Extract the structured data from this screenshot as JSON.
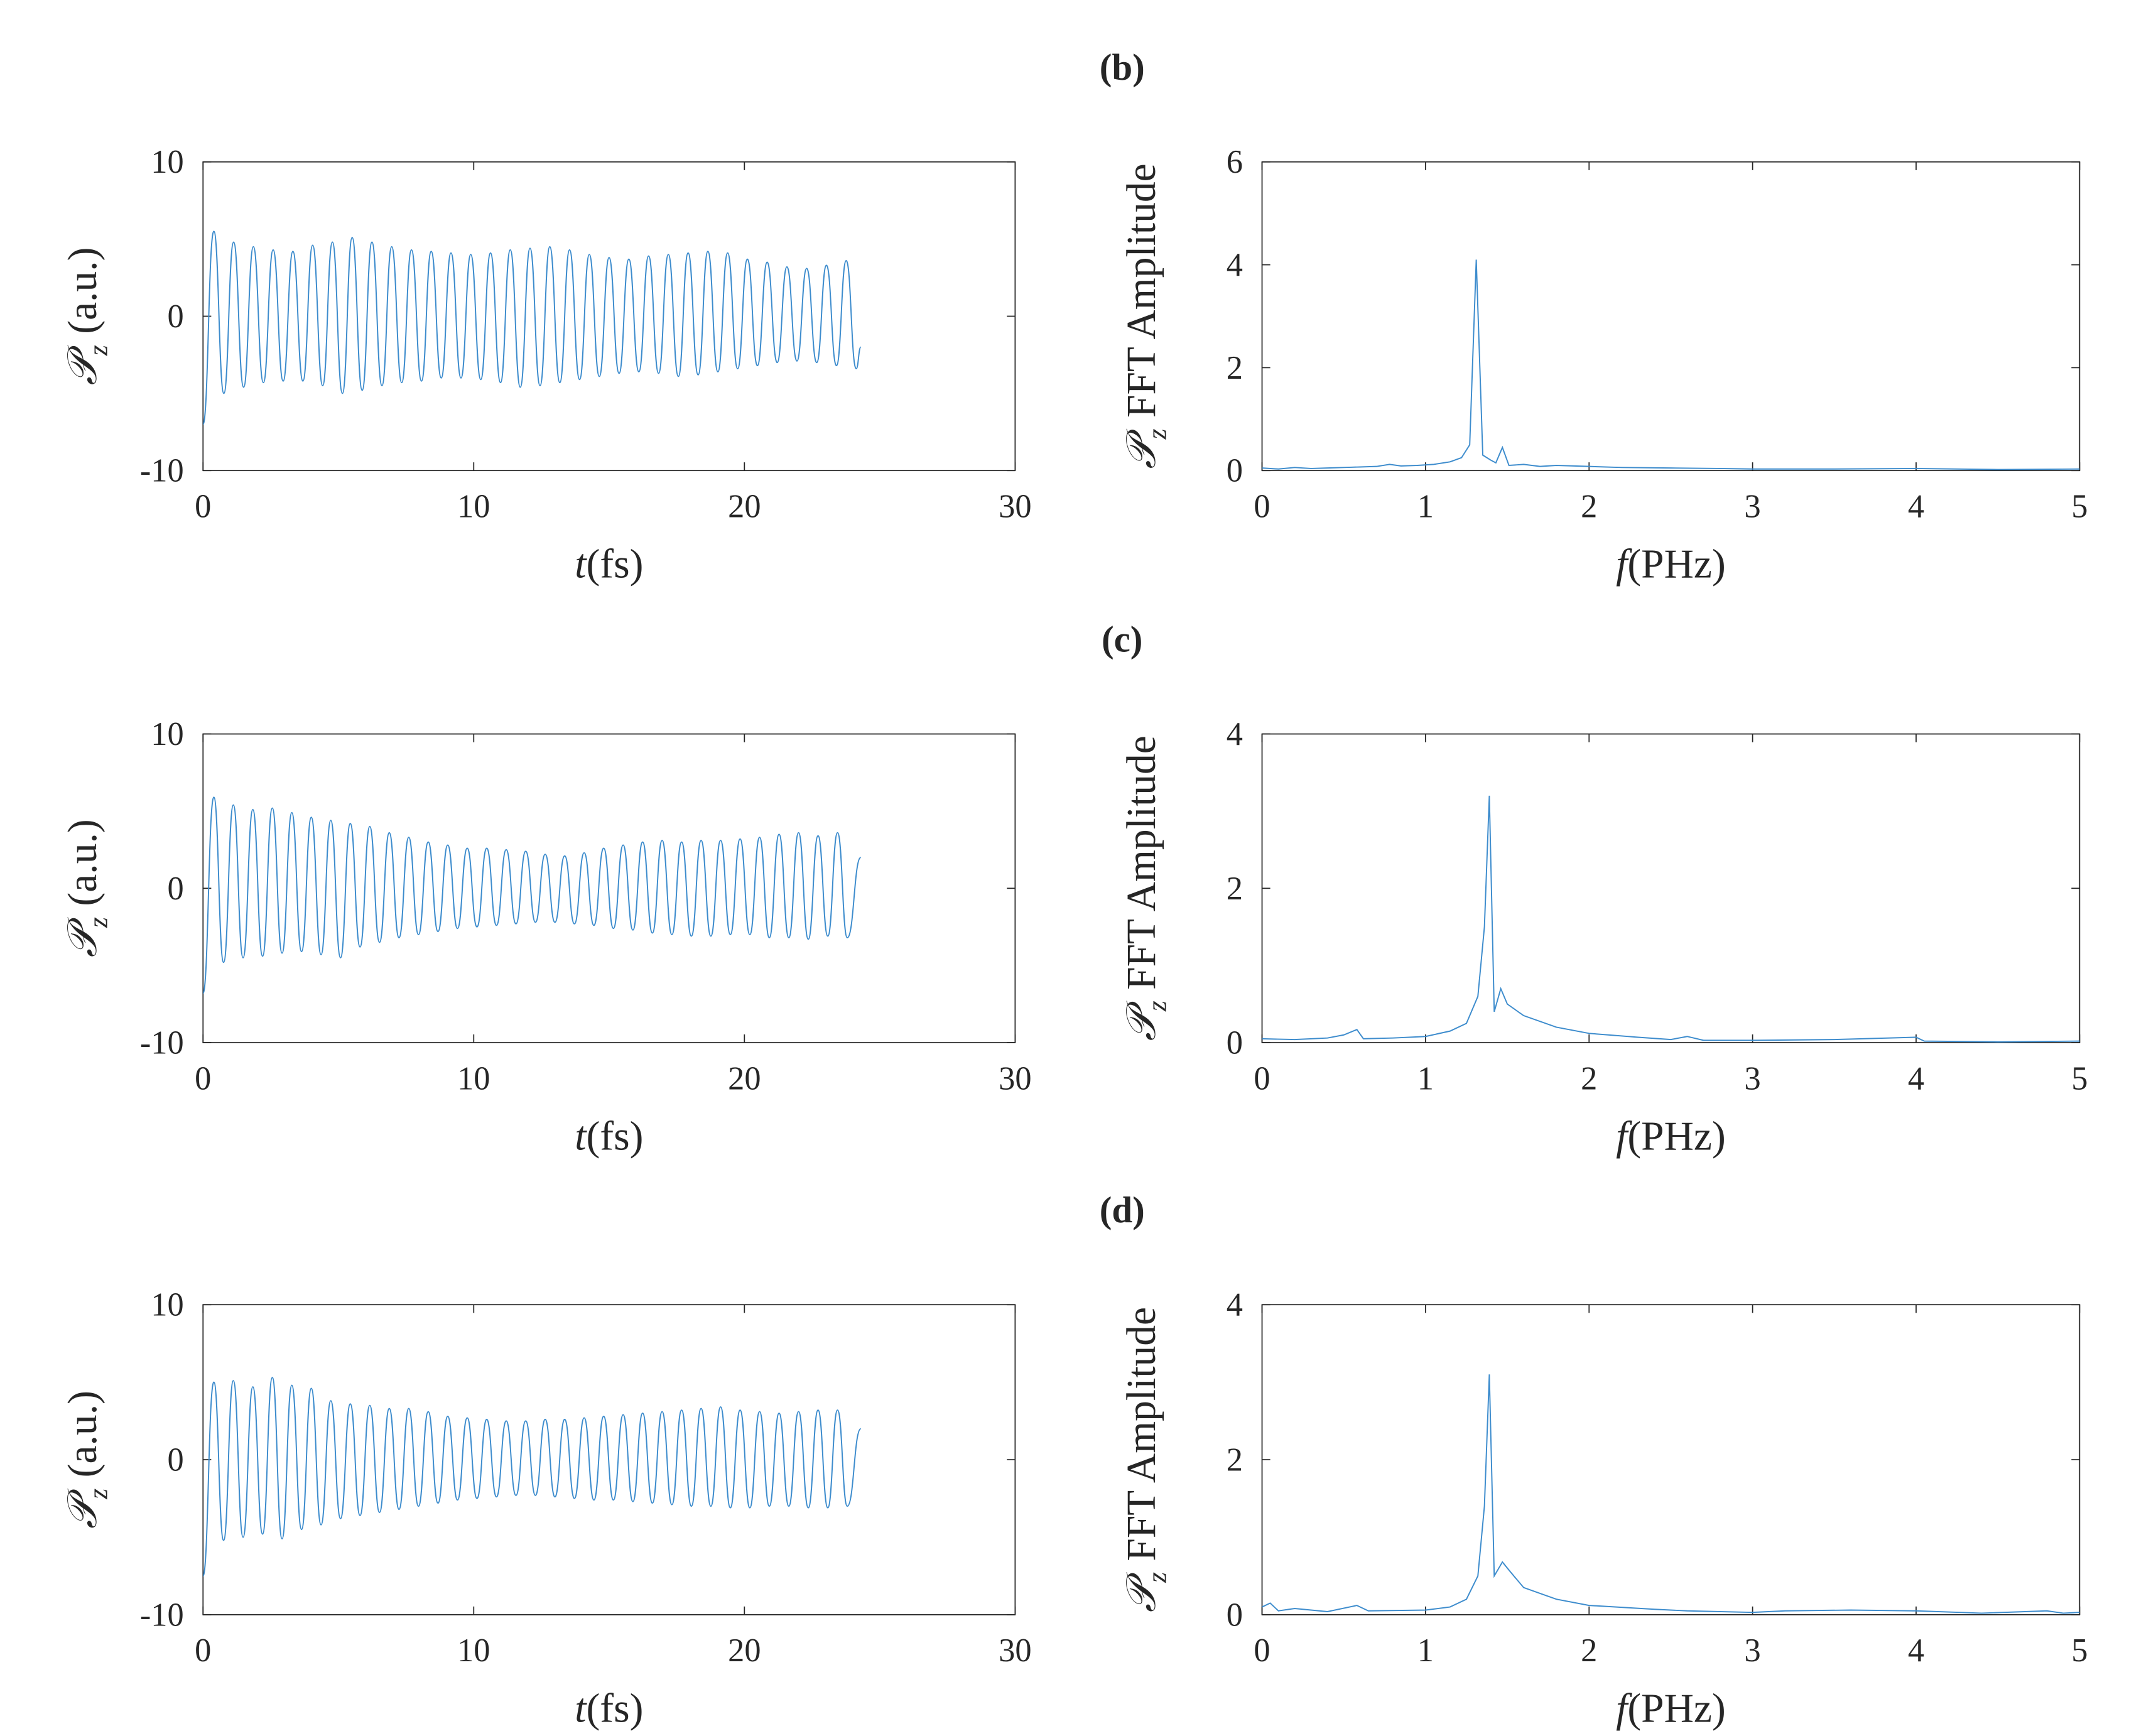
{
  "chart_data": [
    {
      "type": "line",
      "title": "(b)",
      "smooth": true,
      "color": "#3d8ccd",
      "ylabel_symbol": "𝒫",
      "ylabel_sub": "z",
      "ylabel": "(a.u.)",
      "xlabel_symbol": "t",
      "xlabel": "(fs)",
      "xlim": [
        0,
        30
      ],
      "xticks": [
        0,
        10,
        20,
        30
      ],
      "ylim": [
        -10,
        10
      ],
      "yticks": [
        -10,
        0,
        10
      ],
      "x": [
        0,
        0.4,
        0.77,
        1.13,
        1.5,
        1.86,
        2.23,
        2.59,
        2.96,
        3.32,
        3.69,
        4.05,
        4.42,
        4.78,
        5.15,
        5.51,
        5.88,
        6.24,
        6.61,
        6.97,
        7.34,
        7.7,
        8.07,
        8.43,
        8.8,
        9.16,
        9.53,
        9.89,
        10.26,
        10.62,
        10.99,
        11.35,
        11.72,
        12.08,
        12.45,
        12.81,
        13.18,
        13.54,
        13.91,
        14.27,
        14.64,
        15.0,
        15.37,
        15.73,
        16.1,
        16.46,
        16.83,
        17.19,
        17.56,
        17.92,
        18.29,
        18.65,
        19.02,
        19.38,
        19.75,
        20.11,
        20.48,
        20.84,
        21.21,
        21.57,
        21.94,
        22.3,
        22.67,
        23.03,
        23.4,
        23.76,
        24.13,
        24.3
      ],
      "values": [
        -7,
        5.5,
        -5.0,
        4.8,
        -4.6,
        4.5,
        -4.3,
        4.3,
        -4.2,
        4.2,
        -4.2,
        4.6,
        -4.5,
        4.8,
        -5.0,
        5.1,
        -4.8,
        4.8,
        -4.5,
        4.5,
        -4.3,
        4.3,
        -4.2,
        4.2,
        -4.0,
        4.1,
        -4.0,
        4.0,
        -4.1,
        4.1,
        -4.3,
        4.3,
        -4.6,
        4.4,
        -4.5,
        4.5,
        -4.3,
        4.3,
        -4.1,
        4.0,
        -3.9,
        3.8,
        -3.7,
        3.7,
        -3.6,
        3.9,
        -3.7,
        4.0,
        -3.9,
        4.1,
        -3.8,
        4.2,
        -3.6,
        4.1,
        -3.4,
        3.7,
        -3.2,
        3.5,
        -3.0,
        3.2,
        -2.9,
        3.1,
        -3.0,
        3.3,
        -3.2,
        3.6,
        -3.4,
        -2
      ]
    },
    {
      "type": "line",
      "smooth": false,
      "color": "#3d8ccd",
      "ylabel_symbol": "𝒫",
      "ylabel_sub": "z",
      "ylabel": "FFT Amplitude",
      "xlabel_symbol": "f",
      "xlabel": "(PHz)",
      "xlim": [
        0,
        5
      ],
      "xticks": [
        0,
        1,
        2,
        3,
        4,
        5
      ],
      "ylim": [
        0,
        6
      ],
      "yticks": [
        0,
        2,
        4,
        6
      ],
      "x": [
        0,
        0.1,
        0.2,
        0.3,
        0.4,
        0.5,
        0.6,
        0.7,
        0.78,
        0.85,
        0.95,
        1.05,
        1.15,
        1.22,
        1.27,
        1.31,
        1.35,
        1.4,
        1.43,
        1.47,
        1.51,
        1.6,
        1.7,
        1.8,
        2.0,
        2.2,
        2.5,
        2.8,
        3.0,
        3.5,
        4.0,
        4.5,
        5.0
      ],
      "values": [
        0.05,
        0.03,
        0.06,
        0.04,
        0.05,
        0.06,
        0.07,
        0.08,
        0.12,
        0.09,
        0.1,
        0.12,
        0.17,
        0.25,
        0.5,
        4.1,
        0.3,
        0.2,
        0.15,
        0.45,
        0.1,
        0.12,
        0.08,
        0.1,
        0.08,
        0.06,
        0.05,
        0.04,
        0.03,
        0.03,
        0.04,
        0.02,
        0.03
      ]
    },
    {
      "type": "line",
      "title": "(c)",
      "smooth": true,
      "color": "#3d8ccd",
      "ylabel_symbol": "𝒫",
      "ylabel_sub": "z",
      "ylabel": "(a.u.)",
      "xlabel_symbol": "t",
      "xlabel": "(fs)",
      "xlim": [
        0,
        30
      ],
      "xticks": [
        0,
        10,
        20,
        30
      ],
      "ylim": [
        -10,
        10
      ],
      "yticks": [
        -10,
        0,
        10
      ],
      "x": [
        0,
        0.4,
        0.76,
        1.12,
        1.48,
        1.84,
        2.2,
        2.56,
        2.92,
        3.28,
        3.64,
        4.0,
        4.36,
        4.72,
        5.08,
        5.44,
        5.8,
        6.16,
        6.52,
        6.88,
        7.24,
        7.6,
        7.96,
        8.32,
        8.68,
        9.04,
        9.4,
        9.76,
        10.12,
        10.48,
        10.84,
        11.2,
        11.56,
        11.92,
        12.28,
        12.64,
        13.0,
        13.36,
        13.72,
        14.08,
        14.44,
        14.8,
        15.16,
        15.52,
        15.88,
        16.24,
        16.6,
        16.96,
        17.32,
        17.68,
        18.04,
        18.4,
        18.76,
        19.12,
        19.48,
        19.84,
        20.2,
        20.56,
        20.92,
        21.28,
        21.64,
        22.0,
        22.36,
        22.72,
        23.08,
        23.44,
        23.8,
        24.3
      ],
      "values": [
        -6.8,
        5.9,
        -4.8,
        5.4,
        -4.5,
        5.1,
        -4.4,
        5.2,
        -4.2,
        4.9,
        -4.1,
        4.6,
        -4.3,
        4.4,
        -4.5,
        4.2,
        -3.8,
        4.0,
        -3.5,
        3.6,
        -3.2,
        3.3,
        -3.0,
        3.0,
        -2.8,
        2.8,
        -2.6,
        2.6,
        -2.5,
        2.6,
        -2.4,
        2.5,
        -2.3,
        2.4,
        -2.2,
        2.2,
        -2.2,
        2.1,
        -2.3,
        2.3,
        -2.4,
        2.6,
        -2.6,
        2.8,
        -2.7,
        3.0,
        -2.9,
        3.1,
        -3.0,
        3.0,
        -3.1,
        3.1,
        -3.1,
        3.1,
        -3.0,
        3.2,
        -3.0,
        3.3,
        -3.2,
        3.5,
        -3.2,
        3.6,
        -3.3,
        3.4,
        -3.1,
        3.6,
        -3.2,
        2.0
      ]
    },
    {
      "type": "line",
      "smooth": false,
      "color": "#3d8ccd",
      "ylabel_symbol": "𝒫",
      "ylabel_sub": "z",
      "ylabel": "FFT Amplitude",
      "xlabel_symbol": "f",
      "xlabel": "(PHz)",
      "xlim": [
        0,
        5
      ],
      "xticks": [
        0,
        1,
        2,
        3,
        4,
        5
      ],
      "ylim": [
        0,
        4
      ],
      "yticks": [
        0,
        2,
        4
      ],
      "x": [
        0,
        0.2,
        0.4,
        0.5,
        0.58,
        0.62,
        0.8,
        1.0,
        1.15,
        1.25,
        1.32,
        1.36,
        1.39,
        1.42,
        1.46,
        1.5,
        1.6,
        1.8,
        2.0,
        2.3,
        2.5,
        2.6,
        2.7,
        3.0,
        3.5,
        4.0,
        4.05,
        4.5,
        5.0
      ],
      "values": [
        0.05,
        0.04,
        0.06,
        0.1,
        0.17,
        0.05,
        0.06,
        0.08,
        0.15,
        0.25,
        0.6,
        1.5,
        3.2,
        0.4,
        0.7,
        0.5,
        0.35,
        0.2,
        0.12,
        0.07,
        0.04,
        0.08,
        0.03,
        0.03,
        0.04,
        0.07,
        0.02,
        0.01,
        0.02
      ]
    },
    {
      "type": "line",
      "title": "(d)",
      "smooth": true,
      "color": "#3d8ccd",
      "ylabel_symbol": "𝒫",
      "ylabel_sub": "z",
      "ylabel": "(a.u.)",
      "xlabel_symbol": "t",
      "xlabel": "(fs)",
      "xlim": [
        0,
        30
      ],
      "xticks": [
        0,
        10,
        20,
        30
      ],
      "ylim": [
        -10,
        10
      ],
      "yticks": [
        -10,
        0,
        10
      ],
      "x": [
        0,
        0.4,
        0.76,
        1.12,
        1.48,
        1.84,
        2.2,
        2.56,
        2.92,
        3.28,
        3.64,
        4.0,
        4.36,
        4.72,
        5.08,
        5.44,
        5.8,
        6.16,
        6.52,
        6.88,
        7.24,
        7.6,
        7.96,
        8.32,
        8.68,
        9.04,
        9.4,
        9.76,
        10.12,
        10.48,
        10.84,
        11.2,
        11.56,
        11.92,
        12.28,
        12.64,
        13.0,
        13.36,
        13.72,
        14.08,
        14.44,
        14.8,
        15.16,
        15.52,
        15.88,
        16.24,
        16.6,
        16.96,
        17.32,
        17.68,
        18.04,
        18.4,
        18.76,
        19.12,
        19.48,
        19.84,
        20.2,
        20.56,
        20.92,
        21.28,
        21.64,
        22.0,
        22.36,
        22.72,
        23.08,
        23.44,
        23.8,
        24.3
      ],
      "values": [
        -7.5,
        5.0,
        -5.2,
        5.1,
        -5.0,
        4.7,
        -4.8,
        5.3,
        -5.1,
        4.8,
        -4.5,
        4.6,
        -4.2,
        3.8,
        -3.8,
        3.6,
        -3.6,
        3.5,
        -3.4,
        3.3,
        -3.2,
        3.3,
        -3.0,
        3.1,
        -2.8,
        2.8,
        -2.6,
        2.7,
        -2.5,
        2.6,
        -2.4,
        2.5,
        -2.3,
        2.5,
        -2.3,
        2.6,
        -2.4,
        2.6,
        -2.5,
        2.7,
        -2.6,
        2.8,
        -2.6,
        2.9,
        -2.7,
        3.0,
        -2.8,
        3.1,
        -2.9,
        3.2,
        -3.0,
        3.3,
        -3.0,
        3.4,
        -3.1,
        3.2,
        -3.1,
        3.1,
        -3.0,
        3.0,
        -3.0,
        3.1,
        -3.1,
        3.2,
        -3.1,
        3.2,
        -3.0,
        2.0
      ]
    },
    {
      "type": "line",
      "smooth": false,
      "color": "#3d8ccd",
      "ylabel_symbol": "𝒫",
      "ylabel_sub": "z",
      "ylabel": "FFT Amplitude",
      "xlabel_symbol": "f",
      "xlabel": "(PHz)",
      "xlim": [
        0,
        5
      ],
      "xticks": [
        0,
        1,
        2,
        3,
        4,
        5
      ],
      "ylim": [
        0,
        4
      ],
      "yticks": [
        0,
        2,
        4
      ],
      "x": [
        0,
        0.05,
        0.1,
        0.2,
        0.4,
        0.58,
        0.65,
        1.0,
        1.15,
        1.25,
        1.32,
        1.36,
        1.39,
        1.42,
        1.47,
        1.52,
        1.6,
        1.8,
        2.0,
        2.4,
        2.6,
        3.0,
        3.2,
        3.6,
        4.0,
        4.4,
        4.8,
        4.9,
        5.0
      ],
      "values": [
        0.1,
        0.15,
        0.05,
        0.08,
        0.04,
        0.12,
        0.05,
        0.06,
        0.1,
        0.2,
        0.5,
        1.4,
        3.1,
        0.5,
        0.68,
        0.55,
        0.35,
        0.2,
        0.12,
        0.07,
        0.05,
        0.03,
        0.05,
        0.06,
        0.05,
        0.02,
        0.05,
        0.02,
        0.03
      ]
    }
  ]
}
